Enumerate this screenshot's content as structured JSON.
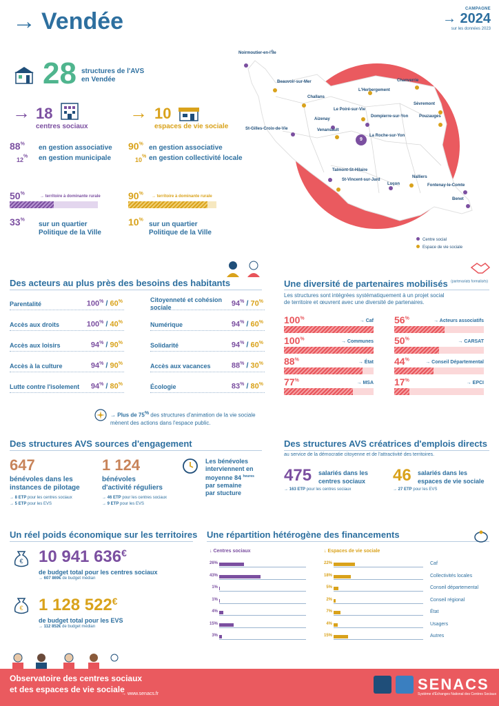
{
  "header": {
    "title": "Vendée",
    "campaign_label": "CAMPAGNE",
    "year": "2024",
    "note": "sur les données 2023"
  },
  "stats": {
    "total": "28",
    "total_label_1": "structures de l'AVS",
    "total_label_2": "en Vendée",
    "cs_count": "18",
    "cs_label": "centres sociaux",
    "evs_count": "10",
    "evs_label": "espaces de vie sociale",
    "cs_assoc_pct": "88",
    "cs_assoc_label": "en gestion associative",
    "cs_muni_pct": "12",
    "cs_muni_label": "en gestion municipale",
    "evs_assoc_pct": "90",
    "evs_assoc_label": "en gestion associative",
    "evs_coll_pct": "10",
    "evs_coll_label": "en gestion collectivité locale",
    "cs_rural_pct": "50",
    "cs_rural_value": 50,
    "rural_label": "→ territoire à dominante rurale",
    "evs_rural_pct": "90",
    "evs_rural_value": 90,
    "cs_qpv_pct": "33",
    "evs_qpv_pct": "10",
    "qpv_label_1": "sur un quartier",
    "qpv_label_2": "Politique de la Ville"
  },
  "map": {
    "places": [
      {
        "name": "Noirmoutier-en-l'Île",
        "type": "cs"
      },
      {
        "name": "Beauvoir-sur-Mer",
        "type": "evs"
      },
      {
        "name": "Challans",
        "type": "evs"
      },
      {
        "name": "L'Herbergement",
        "type": "evs"
      },
      {
        "name": "Chanverrie",
        "type": "evs"
      },
      {
        "name": "Sèvremont",
        "type": "evs"
      },
      {
        "name": "Le Poiré-sur-Vie",
        "type": "evs"
      },
      {
        "name": "Aizenay",
        "type": "cs"
      },
      {
        "name": "Dompierre-sur-Yon",
        "type": "cs"
      },
      {
        "name": "Pouzauges",
        "type": "evs"
      },
      {
        "name": "St-Gilles-Croix-de-Vie",
        "type": "cs"
      },
      {
        "name": "Venansault",
        "type": "evs"
      },
      {
        "name": "La Roche-sur-Yon",
        "type": "cs"
      },
      {
        "name": "Talmont-St-Hilaire",
        "type": "cs"
      },
      {
        "name": "St-Vincent-sur-Jard",
        "type": "evs"
      },
      {
        "name": "Luçon",
        "type": "cs"
      },
      {
        "name": "Nalliers",
        "type": "evs"
      },
      {
        "name": "Fontenay-le-Comte",
        "type": "cs"
      },
      {
        "name": "Benet",
        "type": "cs"
      }
    ],
    "roche_count": "9",
    "legend_cs": "Centre social",
    "legend_evs": "Espace de vie sociale"
  },
  "acteurs": {
    "title": "Des acteurs au plus près des besoins des habitants",
    "rows": [
      {
        "label": "Parentalité",
        "cs": "100",
        "evs": "60"
      },
      {
        "label": "Accès aux droits",
        "cs": "100",
        "evs": "40"
      },
      {
        "label": "Accès aux loisirs",
        "cs": "94",
        "evs": "90"
      },
      {
        "label": "Accès à la culture",
        "cs": "94",
        "evs": "90"
      },
      {
        "label": "Lutte contre l'isolement",
        "cs": "94",
        "evs": "80"
      },
      {
        "label": "Citoyenneté et cohésion sociale",
        "cs": "94",
        "evs": "70"
      },
      {
        "label": "Numérique",
        "cs": "94",
        "evs": "60"
      },
      {
        "label": "Solidarité",
        "cs": "94",
        "evs": "60"
      },
      {
        "label": "Accès aux vacances",
        "cs": "88",
        "evs": "30"
      },
      {
        "label": "Écologie",
        "cs": "83",
        "evs": "80"
      }
    ],
    "note_bold": "Plus de 75",
    "note_rest": "des structures d'animation de la vie sociale",
    "note_line2": "mènent des actions dans l'espace public."
  },
  "partenaires": {
    "title": "Une diversité de partenaires mobilisés",
    "title_small": "(partenariats formalisés)",
    "intro_1": "Les structures sont intégrées systématiquement à un projet social",
    "intro_2": "de territoire et œuvrent avec une diversité de partenaires.",
    "items": [
      {
        "pct": "100",
        "value": 100,
        "label": "→ Caf"
      },
      {
        "pct": "100",
        "value": 100,
        "label": "→ Communes"
      },
      {
        "pct": "88",
        "value": 88,
        "label": "→ État"
      },
      {
        "pct": "77",
        "value": 77,
        "label": "→ MSA"
      },
      {
        "pct": "56",
        "value": 56,
        "label": "→ Acteurs associatifs"
      },
      {
        "pct": "50",
        "value": 50,
        "label": "→ CARSAT"
      },
      {
        "pct": "44",
        "value": 44,
        "label": "→ Conseil Départemental"
      },
      {
        "pct": "17",
        "value": 17,
        "label": "→ EPCI"
      }
    ]
  },
  "engagement": {
    "title": "Des structures AVS sources d'engagement",
    "pilotage_count": "647",
    "pilotage_label_1": "bénévoles  dans les",
    "pilotage_label_2": "instances de pilotage",
    "pilotage_cs": "8 ETP",
    "pilotage_cs_rest": "pour les centres sociaux",
    "pilotage_evs": "5 ETP",
    "pilotage_evs_rest": "pour les EVS",
    "reg_count": "1 124",
    "reg_label_1": "bénévoles",
    "reg_label_2": "d'activité réguliers",
    "reg_cs": "46 ETP",
    "reg_cs_rest": "pour les centres sociaux",
    "reg_evs": "9 ETP",
    "reg_evs_rest": "pour les EVS",
    "hours_1": "Les bénévoles",
    "hours_2": "interviennent en",
    "hours_3": "moyenne 84",
    "hours_unit": "heures",
    "hours_4": "par semaine",
    "hours_5": "par stucture"
  },
  "emplois": {
    "title": "Des structures AVS créatrices d'emplois directs",
    "subtitle": "au service de la démocratie citoyenne et de l'attractivité des territoires.",
    "cs_count": "475",
    "cs_label_1": "salariés dans les",
    "cs_label_2": "centres sociaux",
    "cs_etp": "163 ETP",
    "cs_etp_rest": "pour les centres sociaux",
    "evs_count": "46",
    "evs_label_1": "salariés dans les",
    "evs_label_2": "espaces de vie sociale",
    "evs_etp": "27 ETP",
    "evs_etp_rest": "pour les EVS"
  },
  "economique": {
    "title": "Un réel poids économique sur les territoires",
    "cs_budget": "10 941 636",
    "cs_label": "de budget total pour les centres sociaux",
    "cs_median": "607 869",
    "median_label": "de budget médian",
    "evs_budget": "1 128 522",
    "evs_label": "de budget total pour les EVS",
    "evs_median": "112 852"
  },
  "financements": {
    "title": "Une répartition hétérogène des financements",
    "cs_header": "↓ Centres sociaux",
    "evs_header": "↓ Espaces de vie sociale",
    "rows": [
      {
        "label": "Caf",
        "cs": 26,
        "evs": 22
      },
      {
        "label": "Collectivités locales",
        "cs": 43,
        "evs": 18
      },
      {
        "label": "Conseil départemental",
        "cs": 1,
        "evs": 5
      },
      {
        "label": "Conseil régional",
        "cs": 1,
        "evs": 2
      },
      {
        "label": "État",
        "cs": 4,
        "evs": 7
      },
      {
        "label": "Usagers",
        "cs": 15,
        "evs": 4
      },
      {
        "label": "Autres",
        "cs": 3,
        "evs": 15
      }
    ]
  },
  "footer": {
    "title_1": "Observatoire  des centres sociaux",
    "title_2": "et des espaces de vie sociale",
    "url": "→ www.senacs.fr",
    "brand": "SENACS",
    "brand_sub": "Système d'Échanges National des Centres Sociaux"
  },
  "colors": {
    "blue": "#2d6f9f",
    "purple": "#7b4fa0",
    "gold": "#d9a21b",
    "green": "#4fb58e",
    "red": "#e8545a"
  }
}
